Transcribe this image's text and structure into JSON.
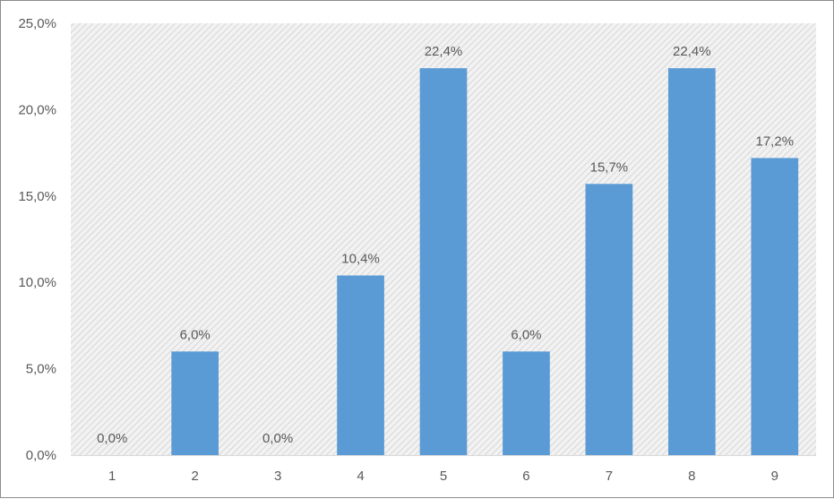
{
  "chart_data": {
    "type": "bar",
    "categories": [
      "1",
      "2",
      "3",
      "4",
      "5",
      "6",
      "7",
      "8",
      "9"
    ],
    "values": [
      0.0,
      6.0,
      0.0,
      10.4,
      22.4,
      6.0,
      15.7,
      22.4,
      17.2
    ],
    "data_labels": [
      "0,0%",
      "6,0%",
      "0,0%",
      "10,4%",
      "22,4%",
      "6,0%",
      "15,7%",
      "22,4%",
      "17,2%"
    ],
    "y_ticks": [
      0,
      5,
      10,
      15,
      20,
      25
    ],
    "y_tick_labels": [
      "0,0%",
      "5,0%",
      "10,0%",
      "15,0%",
      "20,0%",
      "25,0%"
    ],
    "ylim": [
      0,
      25
    ],
    "title": "",
    "xlabel": "",
    "ylabel": "",
    "grid": false,
    "legend": "none",
    "colors": {
      "bar": "#5b9bd5",
      "plot_background": "#f2f2f2",
      "hatch": "#d0d0d0",
      "axis": "#d9d9d9",
      "text": "#595959"
    }
  }
}
